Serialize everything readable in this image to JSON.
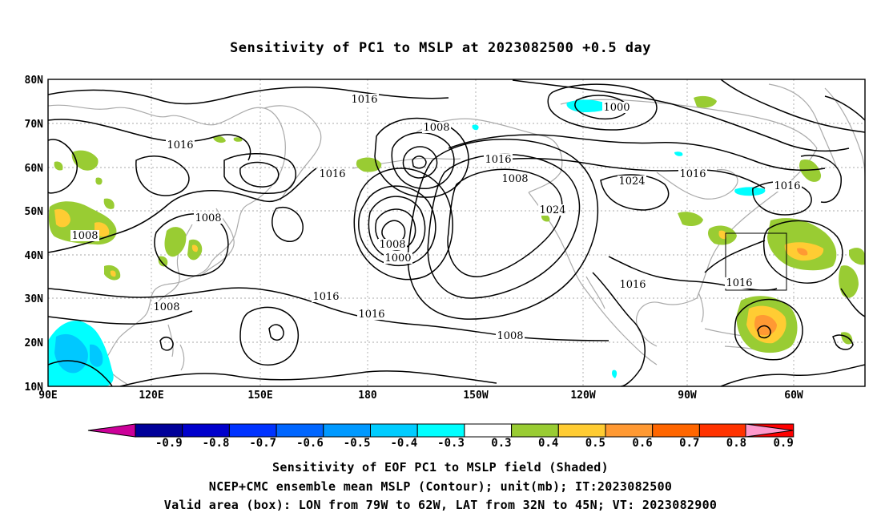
{
  "title": "Sensitivity of PC1 to MSLP at 2023082500 +0.5 day",
  "axes": {
    "lat_labels": [
      "80N",
      "70N",
      "60N",
      "50N",
      "40N",
      "30N",
      "20N",
      "10N"
    ],
    "lon_labels": [
      "90E",
      "120E",
      "150E",
      "180",
      "150W",
      "120W",
      "90W",
      "60W"
    ],
    "lat_range": [
      10,
      80
    ],
    "lon_range_east": [
      90,
      296
    ],
    "grid": "dotted"
  },
  "contour_labels": [
    "1016",
    "1000",
    "1008",
    "1016",
    "1016",
    "1008",
    "1016",
    "1024",
    "1016",
    "1024",
    "1016",
    "1008",
    "1008",
    "1008",
    "1000",
    "1008",
    "1016",
    "1016",
    "1016",
    "1008",
    "1016",
    "1016",
    "1016"
  ],
  "shading_colors": {
    "neg_0.3_0.4": "#00ffff",
    "neg_0.4_0.5": "#00c8ff",
    "pos_0.3_0.4": "#99cc33",
    "pos_0.4_0.5": "#ffcc33",
    "pos_0.5_0.6": "#ff9933",
    "pos_0.6_0.7": "#ff6600"
  },
  "valid_box": {
    "lon_w": -79,
    "lon_e": -62,
    "lat_s": 32,
    "lat_n": 45
  },
  "colorbar": {
    "labels": [
      "-0.9",
      "-0.8",
      "-0.7",
      "-0.6",
      "-0.5",
      "-0.4",
      "-0.3",
      "0.3",
      "0.4",
      "0.5",
      "0.6",
      "0.7",
      "0.8",
      "0.9"
    ],
    "low_end_color": "#cc0099",
    "high_end_color": "#ff99cc",
    "colors": [
      "#000099",
      "#0000cc",
      "#0033ff",
      "#0066ff",
      "#0099ff",
      "#00ccff",
      "#00ffff",
      "#ffffff",
      "#99cc33",
      "#ffcc33",
      "#ff9933",
      "#ff6600",
      "#ff3300",
      "#ff0000"
    ]
  },
  "captions": [
    "Sensitivity of EOF PC1 to MSLP field (Shaded)",
    "NCEP+CMC ensemble mean MSLP (Contour); unit(mb); IT:2023082500",
    "Valid area (box): LON from 79W to 62W, LAT from 32N to 45N; VT: 2023082900"
  ]
}
